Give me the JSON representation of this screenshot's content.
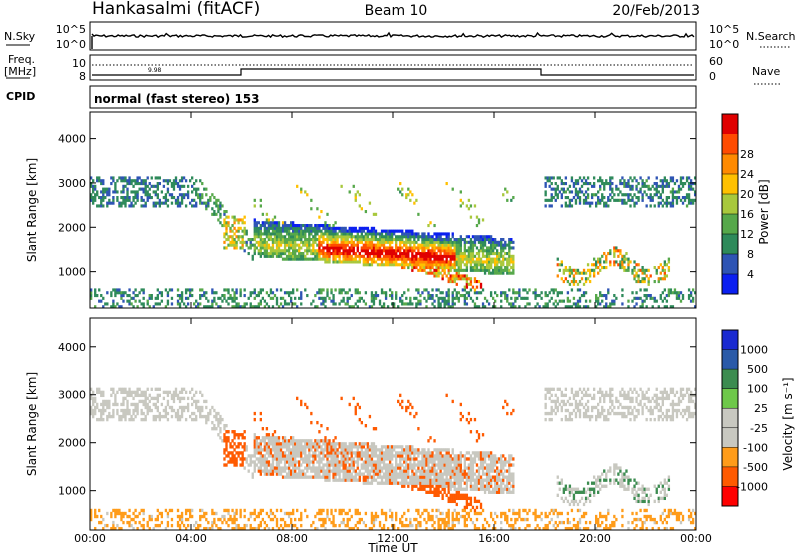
{
  "header": {
    "station": "Hankasalmi (fitACF)",
    "beam": "Beam 10",
    "date": "20/Feb/2013"
  },
  "top_panels": {
    "nsky_label": "N.Sky",
    "nsearch_label": "N.Search",
    "freq_label_1": "Freq.",
    "freq_label_2": "[MHz]",
    "nave_label": "Nave",
    "cpid_label": "CPID",
    "cpid_text": "normal (fast stereo) 153",
    "nsky_ticks": [
      "10^5",
      "10^0"
    ],
    "nsearch_ticks": [
      "10^5",
      "10^0"
    ],
    "freq_ticks": [
      "10",
      "8"
    ],
    "nave_ticks": [
      "60",
      "0"
    ],
    "freq_marker": "9.98"
  },
  "colors": {
    "power": [
      "#0b1ff0",
      "#2e54b4",
      "#2e8a5a",
      "#56a84a",
      "#a8c83c",
      "#ffc000",
      "#ff8a00",
      "#ff4b00",
      "#e00000"
    ],
    "velocity": [
      "#ff0000",
      "#ff5a00",
      "#ff9c1a",
      "#c8c8c0",
      "#c8c8c0",
      "#6ec84a",
      "#3c8c50",
      "#2a5aa8",
      "#1a2ad0"
    ]
  },
  "chart_data": [
    {
      "type": "heatmap",
      "name": "power",
      "xlabel": "",
      "ylabel": "Slant Range [km]",
      "xlim": [
        0,
        24
      ],
      "ylim": [
        180,
        4600
      ],
      "yticks": [
        "1000",
        "2000",
        "3000",
        "4000"
      ],
      "colorbar_label": "Power [dB]",
      "colorbar_ticks": [
        "4",
        "8",
        "12",
        "16",
        "20",
        "24",
        "28"
      ],
      "colorbar_range": [
        0,
        32
      ]
    },
    {
      "type": "heatmap",
      "name": "velocity",
      "xlabel": "Time UT",
      "ylabel": "Slant Range [km]",
      "xlim": [
        0,
        24
      ],
      "ylim": [
        180,
        4600
      ],
      "xticks": [
        "00:00",
        "04:00",
        "08:00",
        "12:00",
        "16:00",
        "20:00",
        "00:00"
      ],
      "yticks": [
        "1000",
        "2000",
        "3000",
        "4000"
      ],
      "colorbar_label": "Velocity [m s⁻¹]",
      "colorbar_ticks": [
        "1000",
        "500",
        "100",
        "25",
        "-25",
        "-100",
        "-500",
        "-1000"
      ]
    }
  ]
}
